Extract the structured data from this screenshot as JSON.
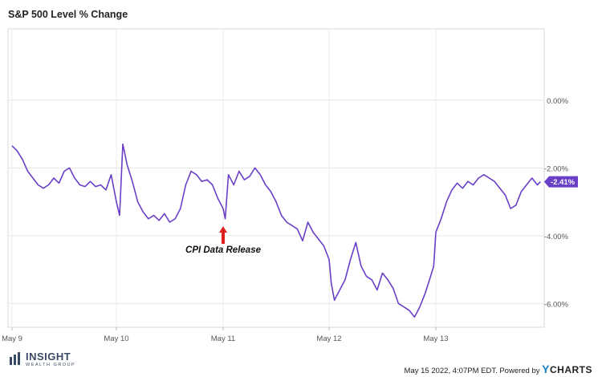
{
  "chart_data": {
    "type": "line",
    "title": "S&P 500 Level % Change",
    "xlabel": "",
    "ylabel": "",
    "x_ticks": [
      "May 9",
      "May 10",
      "May 11",
      "May 12",
      "May 13"
    ],
    "y_ticks": [
      "0.00%",
      "-2.00%",
      "-4.00%",
      "-6.00%"
    ],
    "ylim": [
      -6.7,
      2.1
    ],
    "grid": true,
    "series": [
      {
        "color": "#6a3fc8",
        "points": [
          [
            0.0,
            -1.35
          ],
          [
            0.05,
            -1.5
          ],
          [
            0.1,
            -1.75
          ],
          [
            0.15,
            -2.1
          ],
          [
            0.2,
            -2.3
          ],
          [
            0.25,
            -2.5
          ],
          [
            0.3,
            -2.6
          ],
          [
            0.35,
            -2.5
          ],
          [
            0.4,
            -2.3
          ],
          [
            0.45,
            -2.45
          ],
          [
            0.5,
            -2.1
          ],
          [
            0.55,
            -2.0
          ],
          [
            0.6,
            -2.3
          ],
          [
            0.65,
            -2.5
          ],
          [
            0.7,
            -2.55
          ],
          [
            0.75,
            -2.4
          ],
          [
            0.8,
            -2.55
          ],
          [
            0.85,
            -2.5
          ],
          [
            0.9,
            -2.65
          ],
          [
            0.95,
            -2.2
          ],
          [
            1.0,
            -3.0
          ],
          [
            1.03,
            -3.4
          ],
          [
            1.06,
            -1.3
          ],
          [
            1.1,
            -1.9
          ],
          [
            1.15,
            -2.4
          ],
          [
            1.2,
            -3.0
          ],
          [
            1.25,
            -3.3
          ],
          [
            1.3,
            -3.5
          ],
          [
            1.35,
            -3.4
          ],
          [
            1.4,
            -3.55
          ],
          [
            1.45,
            -3.35
          ],
          [
            1.5,
            -3.6
          ],
          [
            1.55,
            -3.5
          ],
          [
            1.6,
            -3.2
          ],
          [
            1.65,
            -2.5
          ],
          [
            1.7,
            -2.1
          ],
          [
            1.75,
            -2.2
          ],
          [
            1.8,
            -2.4
          ],
          [
            1.85,
            -2.35
          ],
          [
            1.9,
            -2.5
          ],
          [
            1.95,
            -2.9
          ],
          [
            2.0,
            -3.2
          ],
          [
            2.02,
            -3.5
          ],
          [
            2.05,
            -2.2
          ],
          [
            2.1,
            -2.5
          ],
          [
            2.15,
            -2.1
          ],
          [
            2.2,
            -2.35
          ],
          [
            2.25,
            -2.25
          ],
          [
            2.3,
            -2.0
          ],
          [
            2.35,
            -2.2
          ],
          [
            2.4,
            -2.5
          ],
          [
            2.45,
            -2.7
          ],
          [
            2.5,
            -3.0
          ],
          [
            2.55,
            -3.4
          ],
          [
            2.6,
            -3.6
          ],
          [
            2.65,
            -3.7
          ],
          [
            2.7,
            -3.8
          ],
          [
            2.75,
            -4.15
          ],
          [
            2.8,
            -3.6
          ],
          [
            2.85,
            -3.9
          ],
          [
            2.9,
            -4.1
          ],
          [
            2.95,
            -4.3
          ],
          [
            3.0,
            -4.7
          ],
          [
            3.02,
            -5.4
          ],
          [
            3.05,
            -5.9
          ],
          [
            3.1,
            -5.6
          ],
          [
            3.15,
            -5.3
          ],
          [
            3.2,
            -4.7
          ],
          [
            3.25,
            -4.2
          ],
          [
            3.3,
            -4.9
          ],
          [
            3.35,
            -5.2
          ],
          [
            3.4,
            -5.3
          ],
          [
            3.45,
            -5.6
          ],
          [
            3.5,
            -5.1
          ],
          [
            3.55,
            -5.3
          ],
          [
            3.6,
            -5.55
          ],
          [
            3.65,
            -6.0
          ],
          [
            3.7,
            -6.1
          ],
          [
            3.75,
            -6.2
          ],
          [
            3.8,
            -6.4
          ],
          [
            3.85,
            -6.1
          ],
          [
            3.9,
            -5.7
          ],
          [
            3.95,
            -5.2
          ],
          [
            3.98,
            -4.9
          ],
          [
            4.0,
            -3.9
          ],
          [
            4.05,
            -3.5
          ],
          [
            4.1,
            -3.0
          ],
          [
            4.15,
            -2.65
          ],
          [
            4.2,
            -2.45
          ],
          [
            4.25,
            -2.6
          ],
          [
            4.3,
            -2.4
          ],
          [
            4.35,
            -2.5
          ],
          [
            4.4,
            -2.3
          ],
          [
            4.45,
            -2.2
          ],
          [
            4.5,
            -2.3
          ],
          [
            4.55,
            -2.4
          ],
          [
            4.6,
            -2.6
          ],
          [
            4.65,
            -2.8
          ],
          [
            4.7,
            -3.2
          ],
          [
            4.75,
            -3.1
          ],
          [
            4.8,
            -2.7
          ],
          [
            4.85,
            -2.5
          ],
          [
            4.9,
            -2.3
          ],
          [
            4.95,
            -2.5
          ],
          [
            4.98,
            -2.41
          ]
        ]
      }
    ],
    "last_value_label": "-2.41%",
    "annotation": {
      "text": "CPI Data Release",
      "x": 2.0,
      "arrow_color": "#e02020"
    }
  },
  "footer": {
    "logo_name": "INSIGHT",
    "logo_sub": "WEALTH GROUP",
    "timestamp": "May 15 2022, 4:07PM EDT.",
    "powered_by": "Powered by",
    "brand": "CHARTS",
    "brand_y": "Y"
  }
}
